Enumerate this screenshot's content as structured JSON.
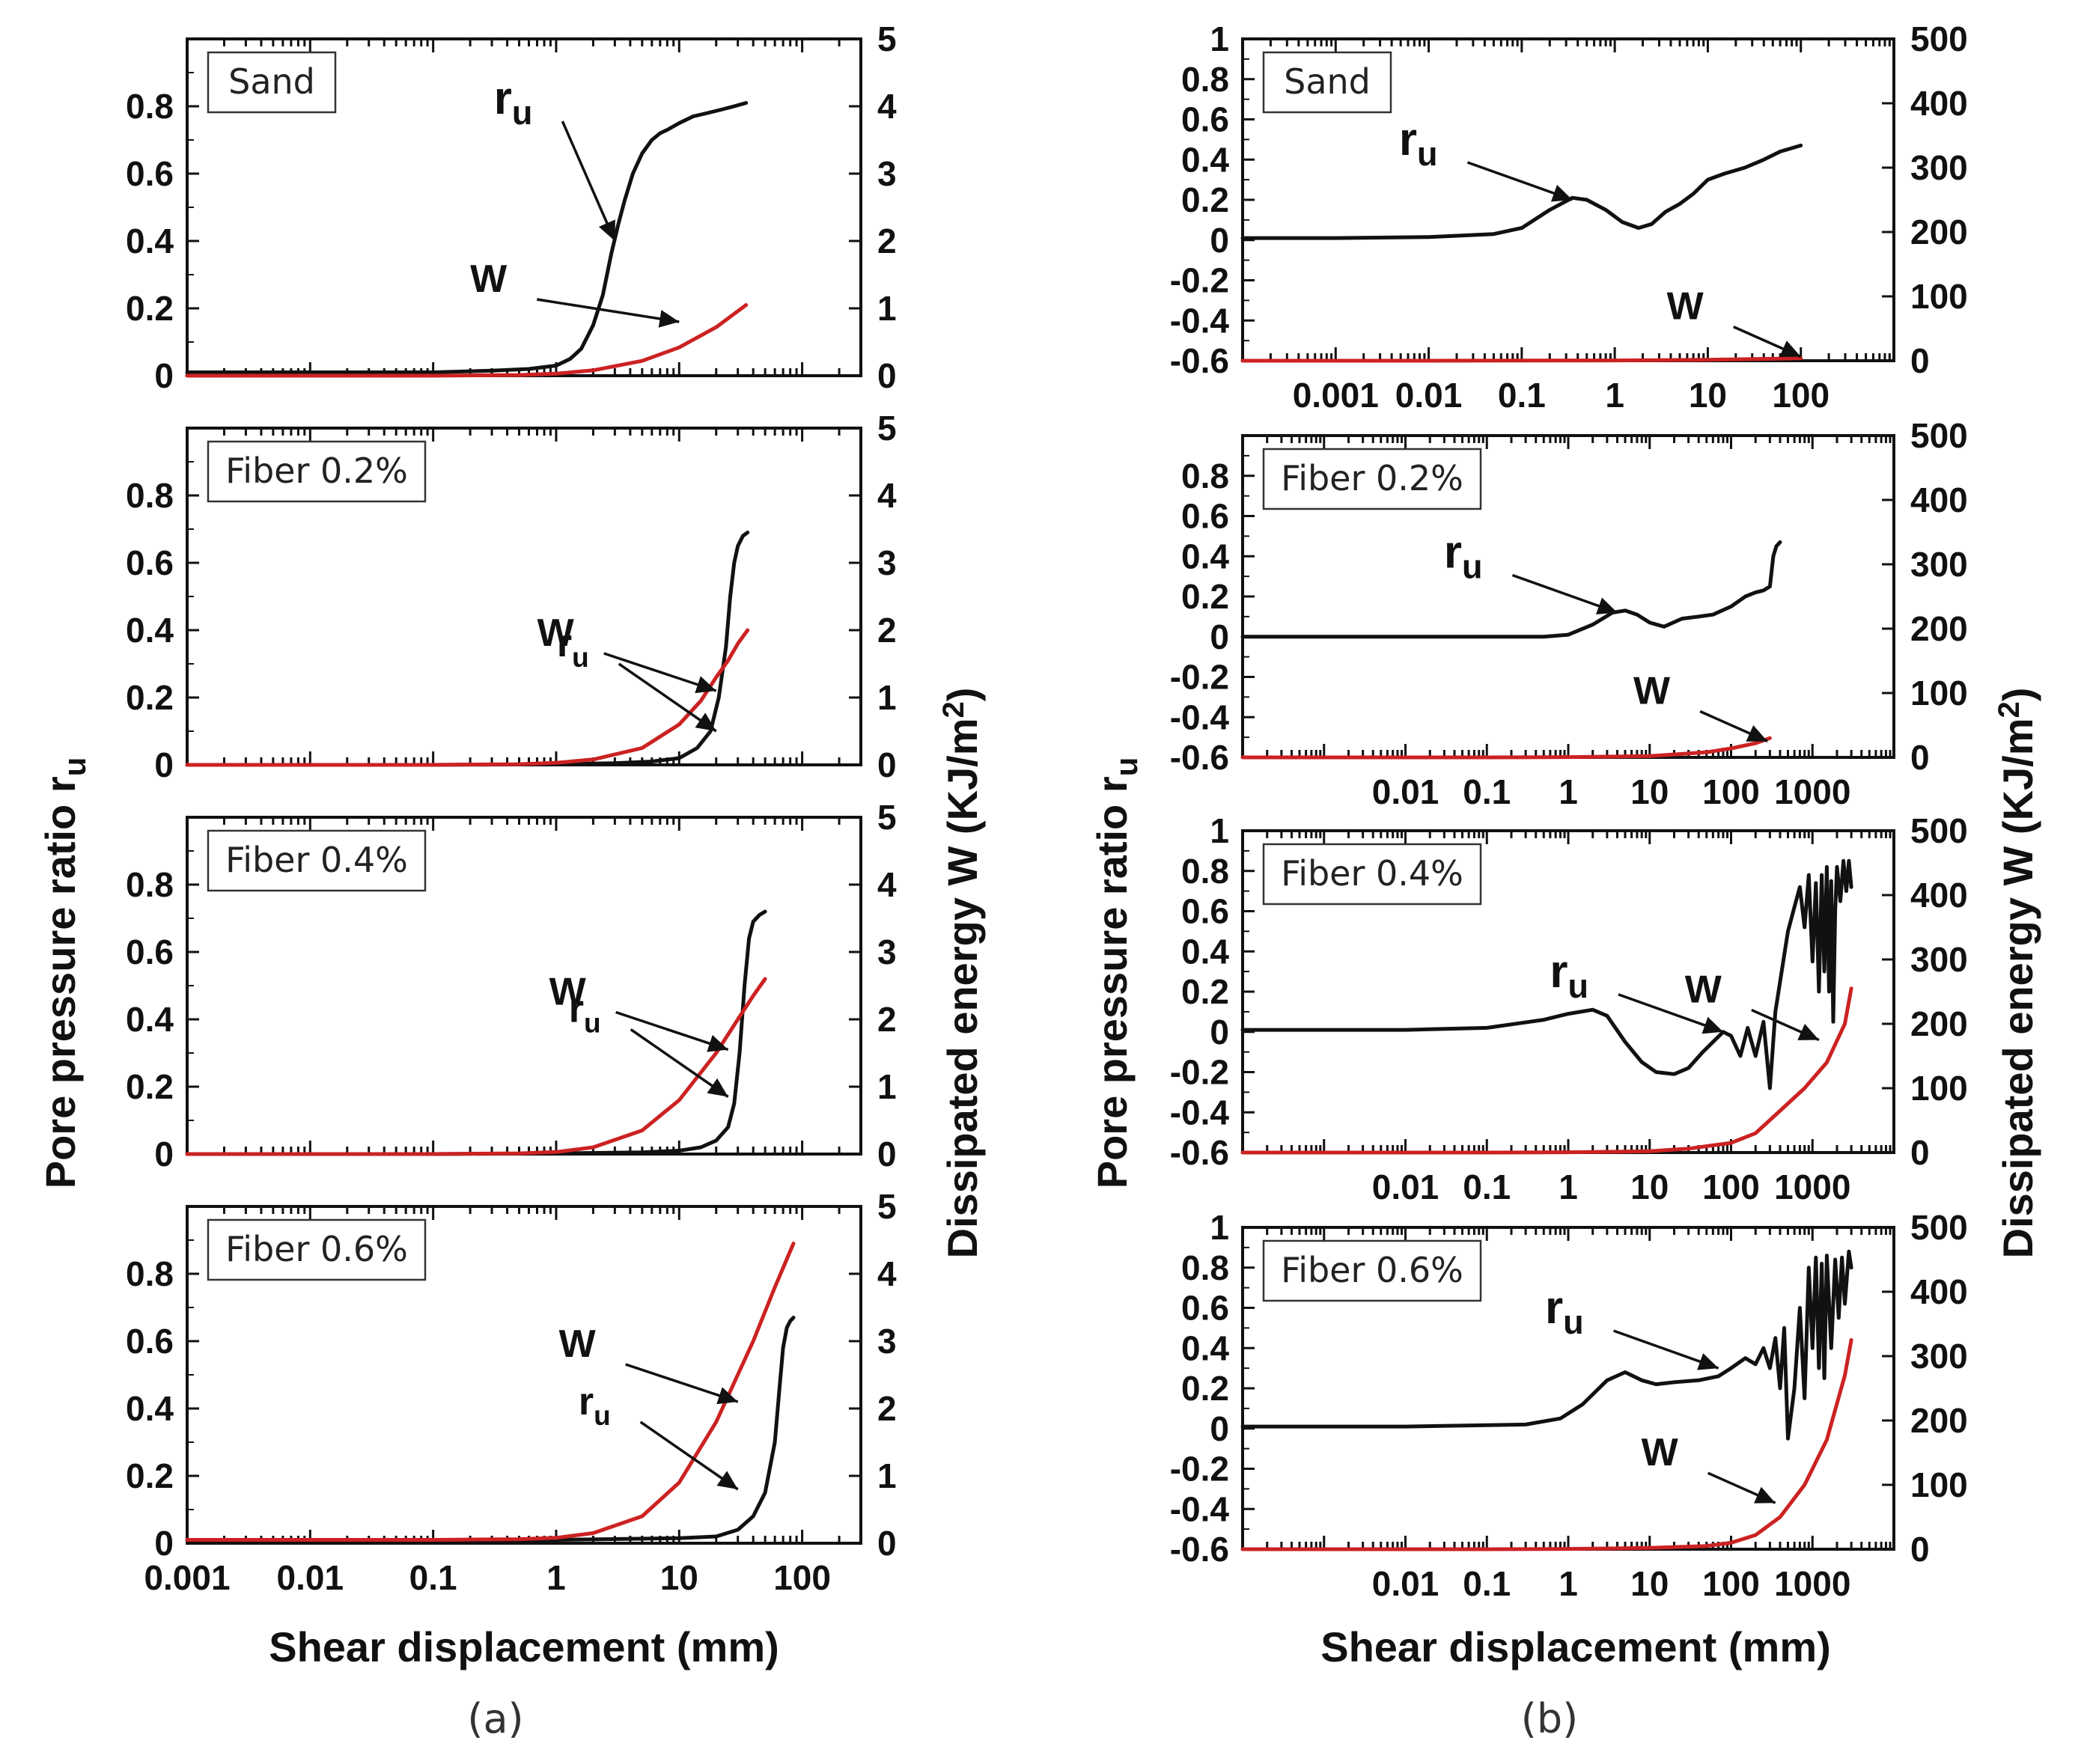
{
  "figure": {
    "sublabels": [
      "(a)",
      "(b)"
    ]
  },
  "chart_data": [
    {
      "type": "line",
      "column": "a",
      "panel": "Sand",
      "label": "Sand",
      "xscale": "log",
      "xlim": [
        0.001,
        300
      ],
      "ylim": [
        0,
        1
      ],
      "y2lim": [
        0,
        5
      ],
      "yticks": [
        "0",
        "0.2",
        "0.4",
        "0.6",
        "0.8"
      ],
      "y2ticks": [
        "0",
        "1",
        "2",
        "3",
        "4",
        "5"
      ],
      "xticks": [],
      "series": [
        {
          "name": "ru",
          "axis": "left",
          "color": "#111111",
          "x": [
            0.001,
            0.01,
            0.1,
            0.3,
            0.6,
            1.0,
            1.3,
            1.6,
            2.0,
            2.4,
            2.8,
            3.2,
            3.6,
            4.2,
            5,
            6,
            7,
            8,
            10,
            13,
            17,
            22,
            28,
            35
          ],
          "y": [
            0.01,
            0.01,
            0.01,
            0.015,
            0.02,
            0.03,
            0.05,
            0.08,
            0.15,
            0.24,
            0.36,
            0.45,
            0.52,
            0.6,
            0.66,
            0.7,
            0.72,
            0.73,
            0.75,
            0.77,
            0.78,
            0.79,
            0.8,
            0.81
          ]
        },
        {
          "name": "W",
          "axis": "right",
          "color": "#cc2222",
          "x": [
            0.001,
            0.01,
            0.1,
            0.5,
            1,
            2,
            5,
            10,
            20,
            35
          ],
          "y": [
            0,
            0,
            0,
            0.01,
            0.03,
            0.08,
            0.22,
            0.42,
            0.72,
            1.05
          ]
        }
      ],
      "annotations": [
        {
          "base": "r",
          "sub": "u",
          "x": 3.0,
          "y": 0.4,
          "axis": "left"
        },
        {
          "base": "W",
          "sub": "",
          "x": 10,
          "y": 0.16,
          "axis": "left"
        }
      ]
    },
    {
      "type": "line",
      "column": "a",
      "panel": "Fiber 0.2%",
      "label": "Fiber 0.2%",
      "xscale": "log",
      "xlim": [
        0.001,
        300
      ],
      "ylim": [
        0,
        1
      ],
      "y2lim": [
        0,
        5
      ],
      "yticks": [
        "0",
        "0.2",
        "0.4",
        "0.6",
        "0.8"
      ],
      "y2ticks": [
        "0",
        "1",
        "2",
        "3",
        "4",
        "5"
      ],
      "xticks": [],
      "series": [
        {
          "name": "ru",
          "axis": "left",
          "color": "#111111",
          "x": [
            0.001,
            0.1,
            1,
            3,
            6,
            10,
            14,
            18,
            21,
            24,
            26,
            28,
            30,
            33,
            36
          ],
          "y": [
            0,
            0,
            0.002,
            0.005,
            0.01,
            0.02,
            0.05,
            0.1,
            0.2,
            0.35,
            0.5,
            0.6,
            0.65,
            0.68,
            0.69
          ]
        },
        {
          "name": "W",
          "axis": "right",
          "color": "#cc2222",
          "x": [
            0.001,
            0.1,
            0.5,
            1,
            2,
            5,
            10,
            15,
            20,
            25,
            30,
            36
          ],
          "y": [
            0,
            0,
            0.01,
            0.03,
            0.08,
            0.25,
            0.6,
            0.95,
            1.3,
            1.55,
            1.8,
            2.0
          ]
        }
      ],
      "annotations": [
        {
          "base": "W",
          "sub": "",
          "x": 20,
          "y": 0.22,
          "axis": "left"
        },
        {
          "base": "r",
          "sub": "u",
          "x": 20,
          "y": 0.1,
          "axis": "left"
        }
      ]
    },
    {
      "type": "line",
      "column": "a",
      "panel": "Fiber 0.4%",
      "label": "Fiber 0.4%",
      "xscale": "log",
      "xlim": [
        0.001,
        300
      ],
      "ylim": [
        0,
        1
      ],
      "y2lim": [
        0,
        5
      ],
      "yticks": [
        "0",
        "0.2",
        "0.4",
        "0.6",
        "0.8"
      ],
      "y2ticks": [
        "0",
        "1",
        "2",
        "3",
        "4",
        "5"
      ],
      "xticks": [],
      "series": [
        {
          "name": "ru",
          "axis": "left",
          "color": "#111111",
          "x": [
            0.001,
            0.1,
            1,
            5,
            10,
            15,
            20,
            25,
            28,
            31,
            34,
            37,
            40,
            45,
            50
          ],
          "y": [
            0,
            0,
            0.002,
            0.005,
            0.01,
            0.02,
            0.04,
            0.08,
            0.15,
            0.3,
            0.5,
            0.64,
            0.69,
            0.71,
            0.72
          ]
        },
        {
          "name": "W",
          "axis": "right",
          "color": "#cc2222",
          "x": [
            0.001,
            0.1,
            0.5,
            1,
            2,
            5,
            10,
            20,
            30,
            40,
            50
          ],
          "y": [
            0,
            0,
            0.01,
            0.03,
            0.1,
            0.35,
            0.8,
            1.5,
            2.0,
            2.35,
            2.6
          ]
        }
      ],
      "annotations": [
        {
          "base": "W",
          "sub": "",
          "x": 25,
          "y": 0.31,
          "axis": "left"
        },
        {
          "base": "r",
          "sub": "u",
          "x": 25,
          "y": 0.17,
          "axis": "left"
        }
      ]
    },
    {
      "type": "line",
      "column": "a",
      "panel": "Fiber 0.6%",
      "label": "Fiber 0.6%",
      "xscale": "log",
      "xlim": [
        0.001,
        300
      ],
      "ylim": [
        0,
        1
      ],
      "y2lim": [
        0,
        5
      ],
      "yticks": [
        "0",
        "0.2",
        "0.4",
        "0.6",
        "0.8"
      ],
      "y2ticks": [
        "0",
        "1",
        "2",
        "3",
        "4",
        "5"
      ],
      "xticks": [
        "0.001",
        "0.01",
        "0.1",
        "1",
        "10",
        "100"
      ],
      "series": [
        {
          "name": "ru",
          "axis": "left",
          "color": "#111111",
          "x": [
            0.001,
            0.1,
            1,
            10,
            20,
            30,
            40,
            50,
            60,
            65,
            70,
            75,
            80,
            85
          ],
          "y": [
            0.01,
            0.01,
            0.01,
            0.015,
            0.02,
            0.04,
            0.08,
            0.15,
            0.3,
            0.45,
            0.58,
            0.64,
            0.66,
            0.67
          ]
        },
        {
          "name": "W",
          "axis": "right",
          "color": "#cc2222",
          "x": [
            0.001,
            0.1,
            0.5,
            1,
            2,
            5,
            10,
            20,
            40,
            60,
            85
          ],
          "y": [
            0.05,
            0.05,
            0.06,
            0.08,
            0.15,
            0.4,
            0.9,
            1.8,
            3.0,
            3.8,
            4.45
          ]
        }
      ],
      "annotations": [
        {
          "base": "W",
          "sub": "",
          "x": 30,
          "y": 0.42,
          "axis": "left"
        },
        {
          "base": "r",
          "sub": "u",
          "x": 30,
          "y": 0.16,
          "axis": "left"
        }
      ]
    },
    {
      "type": "line",
      "column": "b",
      "panel": "Sand",
      "label": "Sand",
      "xscale": "log",
      "xlim": [
        0.0001,
        1000
      ],
      "ylim": [
        -0.6,
        1
      ],
      "y2lim": [
        0,
        500
      ],
      "yticks": [
        "-0.6",
        "-0.4",
        "-0.2",
        "0",
        "0.2",
        "0.4",
        "0.6",
        "0.8",
        "1"
      ],
      "y2ticks": [
        "0",
        "100",
        "200",
        "300",
        "400",
        "500"
      ],
      "xticks": [
        "0.001",
        "0.01",
        "0.1",
        "1",
        "10",
        "100"
      ],
      "series": [
        {
          "name": "ru",
          "axis": "left",
          "color": "#111111",
          "x": [
            0.0001,
            0.001,
            0.01,
            0.05,
            0.1,
            0.2,
            0.35,
            0.5,
            0.8,
            1.2,
            1.8,
            2.5,
            3.5,
            5,
            7,
            10,
            15,
            25,
            40,
            60,
            100
          ],
          "y": [
            0.01,
            0.01,
            0.015,
            0.03,
            0.06,
            0.15,
            0.21,
            0.2,
            0.15,
            0.09,
            0.06,
            0.08,
            0.14,
            0.18,
            0.23,
            0.3,
            0.33,
            0.36,
            0.4,
            0.44,
            0.47
          ]
        },
        {
          "name": "W",
          "axis": "right",
          "color": "#cc2222",
          "x": [
            0.0001,
            0.01,
            1,
            10,
            50,
            100
          ],
          "y": [
            0,
            0,
            0.5,
            1.5,
            3,
            4
          ]
        }
      ],
      "annotations": [
        {
          "base": "r",
          "sub": "u",
          "x": 0.35,
          "y": 0.2,
          "axis": "left"
        },
        {
          "base": "W",
          "sub": "",
          "x": 100,
          "y": -0.58,
          "axis": "left"
        }
      ]
    },
    {
      "type": "line",
      "column": "b",
      "panel": "Fiber 0.2%",
      "label": "Fiber 0.2%",
      "xscale": "log",
      "xlim": [
        0.0001,
        10000
      ],
      "ylim": [
        -0.6,
        1
      ],
      "y2lim": [
        0,
        500
      ],
      "yticks": [
        "-0.6",
        "-0.4",
        "-0.2",
        "0",
        "0.2",
        "0.4",
        "0.6",
        "0.8"
      ],
      "y2ticks": [
        "0",
        "100",
        "200",
        "300",
        "400",
        "500"
      ],
      "xticks": [
        "0.01",
        "0.1",
        "1",
        "10",
        "100",
        "1000"
      ],
      "series": [
        {
          "name": "ru",
          "axis": "left",
          "color": "#111111",
          "x": [
            0.0001,
            0.01,
            0.5,
            1,
            2,
            3.5,
            5,
            7,
            10,
            15,
            25,
            40,
            60,
            100,
            150,
            200,
            250,
            300,
            330,
            360,
            400
          ],
          "y": [
            0,
            0,
            0,
            0.01,
            0.06,
            0.12,
            0.13,
            0.11,
            0.07,
            0.05,
            0.09,
            0.1,
            0.11,
            0.15,
            0.2,
            0.22,
            0.23,
            0.25,
            0.4,
            0.45,
            0.47
          ]
        },
        {
          "name": "W",
          "axis": "right",
          "color": "#cc2222",
          "x": [
            0.0001,
            0.1,
            1,
            10,
            50,
            100,
            200,
            300
          ],
          "y": [
            0,
            0,
            0.5,
            2,
            8,
            14,
            22,
            30
          ]
        }
      ],
      "annotations": [
        {
          "base": "r",
          "sub": "u",
          "x": 4,
          "y": 0.12,
          "axis": "left"
        },
        {
          "base": "W",
          "sub": "",
          "x": 280,
          "y": -0.52,
          "axis": "left"
        }
      ]
    },
    {
      "type": "line",
      "column": "b",
      "panel": "Fiber 0.4%",
      "label": "Fiber 0.4%",
      "xscale": "log",
      "xlim": [
        0.0001,
        10000
      ],
      "ylim": [
        -0.6,
        1
      ],
      "y2lim": [
        0,
        500
      ],
      "yticks": [
        "-0.6",
        "-0.4",
        "-0.2",
        "0",
        "0.2",
        "0.4",
        "0.6",
        "0.8",
        "1"
      ],
      "y2ticks": [
        "0",
        "100",
        "200",
        "300",
        "400",
        "500"
      ],
      "xticks": [
        "0.01",
        "0.1",
        "1",
        "10",
        "100",
        "1000"
      ],
      "series": [
        {
          "name": "ru",
          "axis": "left",
          "color": "#111111",
          "x": [
            0.0001,
            0.01,
            0.1,
            0.5,
            1,
            2,
            3,
            5,
            8,
            12,
            20,
            30,
            45,
            60,
            80,
            100,
            130,
            160,
            200,
            250,
            300,
            350,
            400,
            500,
            600,
            700,
            800,
            900,
            1000,
            1100,
            1200,
            1300,
            1400,
            1500,
            1600,
            1700,
            1800,
            1900,
            2000,
            2200,
            2400,
            2600,
            2800,
            3000
          ],
          "y": [
            0.01,
            0.01,
            0.02,
            0.06,
            0.09,
            0.11,
            0.08,
            -0.05,
            -0.15,
            -0.2,
            -0.21,
            -0.18,
            -0.1,
            -0.05,
            0.0,
            -0.02,
            -0.12,
            0.02,
            -0.12,
            0.05,
            -0.28,
            0.1,
            0.25,
            0.5,
            0.62,
            0.72,
            0.52,
            0.78,
            0.35,
            0.74,
            0.2,
            0.78,
            0.3,
            0.82,
            0.2,
            0.75,
            0.05,
            0.6,
            0.82,
            0.65,
            0.85,
            0.7,
            0.85,
            0.72
          ]
        },
        {
          "name": "W",
          "axis": "right",
          "color": "#cc2222",
          "x": [
            0.0001,
            0.1,
            1,
            10,
            30,
            100,
            200,
            400,
            800,
            1500,
            2500,
            3000
          ],
          "y": [
            0,
            0,
            0.5,
            2,
            6,
            15,
            30,
            65,
            100,
            140,
            200,
            255
          ]
        }
      ],
      "annotations": [
        {
          "base": "r",
          "sub": "u",
          "x": 80,
          "y": 0.0,
          "axis": "left"
        },
        {
          "base": "W",
          "sub": "",
          "x": 1200,
          "y": -0.04,
          "axis": "left"
        }
      ]
    },
    {
      "type": "line",
      "column": "b",
      "panel": "Fiber 0.6%",
      "label": "Fiber 0.6%",
      "xscale": "log",
      "xlim": [
        0.0001,
        10000
      ],
      "ylim": [
        -0.6,
        1
      ],
      "y2lim": [
        0,
        500
      ],
      "yticks": [
        "-0.6",
        "-0.4",
        "-0.2",
        "0",
        "0.2",
        "0.4",
        "0.6",
        "0.8",
        "1"
      ],
      "y2ticks": [
        "0",
        "100",
        "200",
        "300",
        "400",
        "500"
      ],
      "xticks": [
        "0.01",
        "0.1",
        "1",
        "10",
        "100",
        "1000"
      ],
      "series": [
        {
          "name": "ru",
          "axis": "left",
          "color": "#111111",
          "x": [
            0.0001,
            0.01,
            0.3,
            0.8,
            1.5,
            3,
            5,
            8,
            12,
            20,
            40,
            70,
            100,
            150,
            200,
            250,
            300,
            350,
            400,
            450,
            500,
            600,
            700,
            800,
            900,
            1000,
            1100,
            1200,
            1300,
            1400,
            1500,
            1700,
            1900,
            2100,
            2300,
            2500,
            2800,
            3000
          ],
          "y": [
            0.01,
            0.01,
            0.02,
            0.05,
            0.12,
            0.24,
            0.28,
            0.24,
            0.22,
            0.23,
            0.24,
            0.26,
            0.3,
            0.35,
            0.32,
            0.4,
            0.3,
            0.45,
            0.2,
            0.5,
            -0.05,
            0.2,
            0.6,
            0.15,
            0.8,
            0.4,
            0.85,
            0.3,
            0.82,
            0.25,
            0.86,
            0.4,
            0.84,
            0.55,
            0.85,
            0.62,
            0.88,
            0.8
          ]
        },
        {
          "name": "W",
          "axis": "right",
          "color": "#cc2222",
          "x": [
            0.0001,
            0.1,
            1,
            10,
            50,
            100,
            200,
            400,
            800,
            1500,
            2500,
            3000
          ],
          "y": [
            0,
            0,
            0.5,
            2,
            5,
            10,
            22,
            50,
            100,
            170,
            270,
            325
          ]
        }
      ],
      "annotations": [
        {
          "base": "r",
          "sub": "u",
          "x": 70,
          "y": 0.3,
          "axis": "left"
        },
        {
          "base": "W",
          "sub": "",
          "x": 350,
          "y": -0.37,
          "axis": "left"
        }
      ]
    }
  ],
  "axes_text": {
    "left_ylabel_a": {
      "base": "Pore pressure ratio r",
      "sub": "u"
    },
    "right_ylabel_a": {
      "base": "Dissipated energy W (KJ/m",
      "sup": "2",
      "tail": ")"
    },
    "left_ylabel_b": {
      "base": "Pore pressure ratio r",
      "sub": "u"
    },
    "right_ylabel_b": {
      "base": "Dissipated energy W (KJ/m",
      "sup": "2",
      "tail": ")"
    },
    "xlabel_a": "Shear displacement (mm)",
    "xlabel_b": "Shear displacement (mm)"
  }
}
